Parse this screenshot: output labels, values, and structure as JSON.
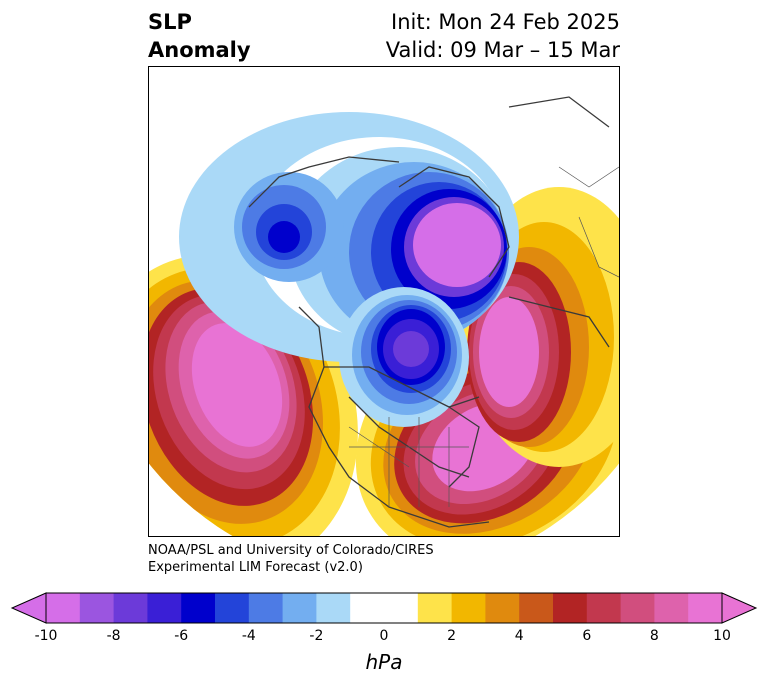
{
  "title": {
    "left_line1": "SLP",
    "left_line2": "Anomaly",
    "init": "Init: Mon 24 Feb 2025",
    "valid": "Valid: 09 Mar – 15 Mar"
  },
  "credit": {
    "line1": "NOAA/PSL and University of Colorado/CIRES",
    "line2": "Experimental LIM Forecast (v2.0)"
  },
  "colorbar": {
    "unit": "hPa",
    "ticks": [
      "-10",
      "-8",
      "-6",
      "-4",
      "-2",
      "0",
      "2",
      "4",
      "6",
      "8",
      "10"
    ],
    "colors": [
      "#d56ee8",
      "#9b55e0",
      "#6c3ad9",
      "#3a1fd6",
      "#0000cc",
      "#2344d9",
      "#4d7be5",
      "#73aef0",
      "#aad9f7",
      "#ffffff",
      "#ffffff",
      "#fee34a",
      "#f2b700",
      "#e08a0e",
      "#c9581a",
      "#b22424",
      "#c2384e",
      "#d14e7e",
      "#de62ac",
      "#e873d4"
    ],
    "under_color": "#d56ee8",
    "over_color": "#e873d4"
  }
}
